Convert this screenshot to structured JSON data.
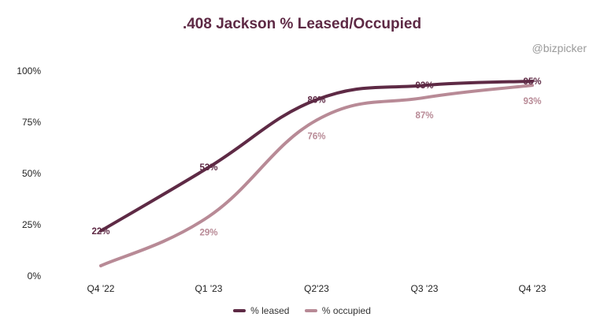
{
  "chart_data": {
    "type": "line",
    "title": ".408 Jackson % Leased/Occupied",
    "watermark": "@bizpicker",
    "categories": [
      "Q4 '22",
      "Q1 '23",
      "Q2'23",
      "Q3 '23",
      "Q4 '23"
    ],
    "ylim": [
      0,
      100
    ],
    "yticks": [
      0,
      25,
      50,
      75,
      100
    ],
    "ytick_labels": [
      "0%",
      "25%",
      "50%",
      "75%",
      "100%"
    ],
    "series": [
      {
        "name": "% leased",
        "color": "#5e2a45",
        "values": [
          22,
          53,
          86,
          93,
          95
        ],
        "labels": [
          "22%",
          "53%",
          "86%",
          "93%",
          "95%"
        ]
      },
      {
        "name": "% occupied",
        "color": "#b88a96",
        "values": [
          5,
          29,
          76,
          87,
          93
        ],
        "labels": [
          "",
          "29%",
          "76%",
          "87%",
          "93%"
        ]
      }
    ],
    "legend_position": "bottom"
  }
}
